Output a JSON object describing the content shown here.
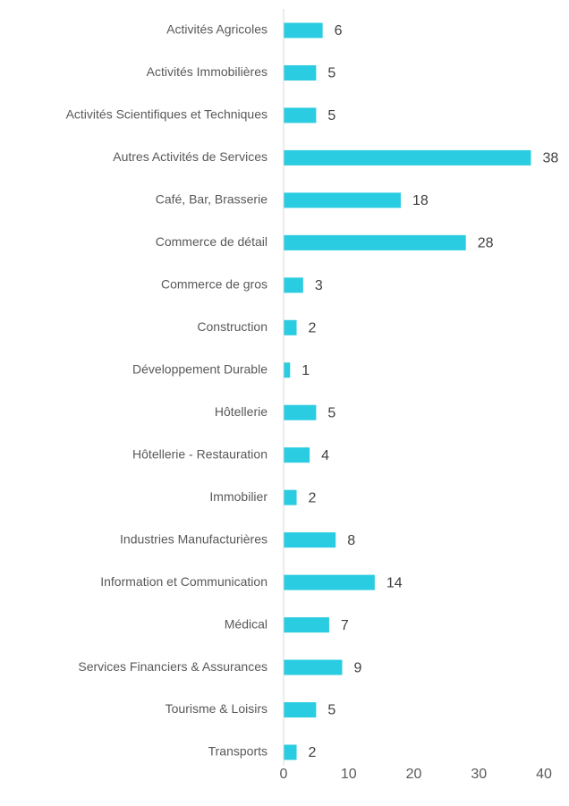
{
  "chart_data": {
    "type": "bar",
    "orientation": "horizontal",
    "categories": [
      "Activités Agricoles",
      "Activités Immobilières",
      "Activités Scientifiques et Techniques",
      "Autres Activités de Services",
      "Café, Bar, Brasserie",
      "Commerce de détail",
      "Commerce de gros",
      "Construction",
      "Développement Durable",
      "Hôtellerie",
      "Hôtellerie - Restauration",
      "Immobilier",
      "Industries Manufacturières",
      "Information et Communication",
      "Médical",
      "Services Financiers & Assurances",
      "Tourisme & Loisirs",
      "Transports"
    ],
    "values": [
      6,
      5,
      5,
      38,
      18,
      28,
      3,
      2,
      1,
      5,
      4,
      2,
      8,
      14,
      7,
      9,
      5,
      2
    ],
    "color": "#29cce0",
    "xlim": [
      0,
      40
    ],
    "xticks": [
      0,
      10,
      20,
      30,
      40
    ],
    "grid": false
  }
}
